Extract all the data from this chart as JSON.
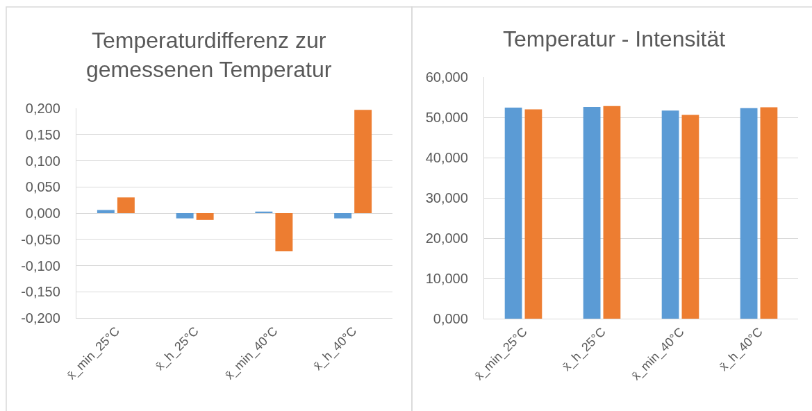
{
  "chart_data": [
    {
      "type": "bar",
      "title": "Temperaturdifferenz zur\ngemessenen Temperatur",
      "categories": [
        "x̄_min_25°C",
        "x̄_h_25°C",
        "x̄_min_40°C",
        "x̄_h_40°C"
      ],
      "series": [
        {
          "color": "#5b9bd5",
          "values": [
            0.006,
            -0.01,
            0.003,
            -0.01
          ]
        },
        {
          "color": "#ed7d31",
          "values": [
            0.03,
            -0.013,
            -0.073,
            0.197
          ]
        }
      ],
      "ylim": [
        -0.2,
        0.2
      ],
      "yticks": [
        {
          "value": -0.2,
          "label": "-0,200"
        },
        {
          "value": -0.15,
          "label": "-0,150"
        },
        {
          "value": -0.1,
          "label": "-0,100"
        },
        {
          "value": -0.05,
          "label": "-0,050"
        },
        {
          "value": 0,
          "label": "0,000"
        },
        {
          "value": 0.05,
          "label": "0,050"
        },
        {
          "value": 0.1,
          "label": "0,100"
        },
        {
          "value": 0.15,
          "label": "0,150"
        },
        {
          "value": 0.2,
          "label": "0,200"
        }
      ],
      "grid": "y"
    },
    {
      "type": "bar",
      "title": "Temperatur - Intensität",
      "categories": [
        "x̄_min_25°C",
        "x̄_h_25°C",
        "x̄_min_40°C",
        "x̄_h_40°C"
      ],
      "series": [
        {
          "color": "#5b9bd5",
          "values": [
            52.4,
            52.6,
            51.7,
            52.3
          ]
        },
        {
          "color": "#ed7d31",
          "values": [
            52.0,
            52.8,
            50.6,
            52.5
          ]
        }
      ],
      "ylim": [
        0,
        60
      ],
      "yticks": [
        {
          "value": 0,
          "label": "0,000"
        },
        {
          "value": 10,
          "label": "10,000"
        },
        {
          "value": 20,
          "label": "20,000"
        },
        {
          "value": 30,
          "label": "30,000"
        },
        {
          "value": 40,
          "label": "40,000"
        },
        {
          "value": 50,
          "label": "50,000"
        },
        {
          "value": 60,
          "label": "60,000"
        }
      ],
      "grid": "y"
    }
  ]
}
